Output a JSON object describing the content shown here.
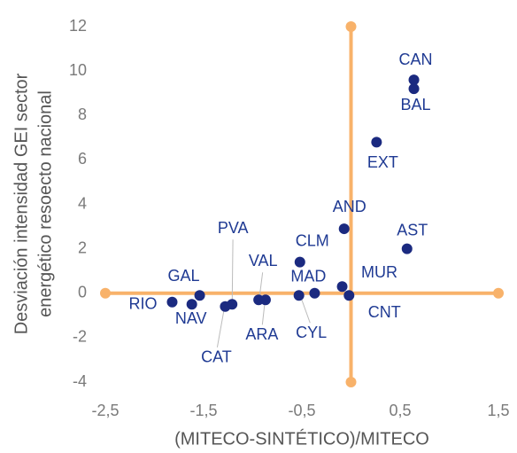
{
  "chart_data": {
    "type": "scatter",
    "xlabel": "(MITECO-SINTÉTICO)/MITECO",
    "ylabel": [
      "Desviación intensidad GEI sector",
      "energético resoecto nacional"
    ],
    "labels": [
      "CAN",
      "BAL",
      "EXT",
      "AND",
      "AST",
      "CLM",
      "MAD",
      "CYL",
      "MUR",
      "CNT",
      "GAL",
      "RIO",
      "NAV",
      "PVA",
      "CAT",
      "VAL",
      "ARA"
    ],
    "x": [
      0.64,
      0.64,
      0.26,
      -0.07,
      0.57,
      -0.52,
      -0.37,
      -0.53,
      -0.09,
      -0.02,
      -1.54,
      -1.82,
      -1.62,
      -1.21,
      -1.28,
      -0.94,
      -0.87
    ],
    "y": [
      9.6,
      9.2,
      6.8,
      2.9,
      2.0,
      1.4,
      0.0,
      -0.1,
      0.3,
      -0.1,
      -0.1,
      -0.4,
      -0.5,
      -0.5,
      -0.6,
      -0.3,
      -0.3
    ],
    "color": "#1b2a80",
    "axis_color": "#f8b26a",
    "xlim": [
      -2.5,
      1.5
    ],
    "xticks": [
      {
        "value": -2.5,
        "label": "-2,5"
      },
      {
        "value": -1.5,
        "label": "-1,5"
      },
      {
        "value": -0.5,
        "label": "-0,5"
      },
      {
        "value": 0.5,
        "label": "0,5"
      },
      {
        "value": 1.5,
        "label": "1,5"
      }
    ],
    "ylim": [
      -4,
      12
    ],
    "yticks": [
      -4,
      -2,
      0,
      2,
      4,
      6,
      8,
      10,
      12
    ]
  }
}
